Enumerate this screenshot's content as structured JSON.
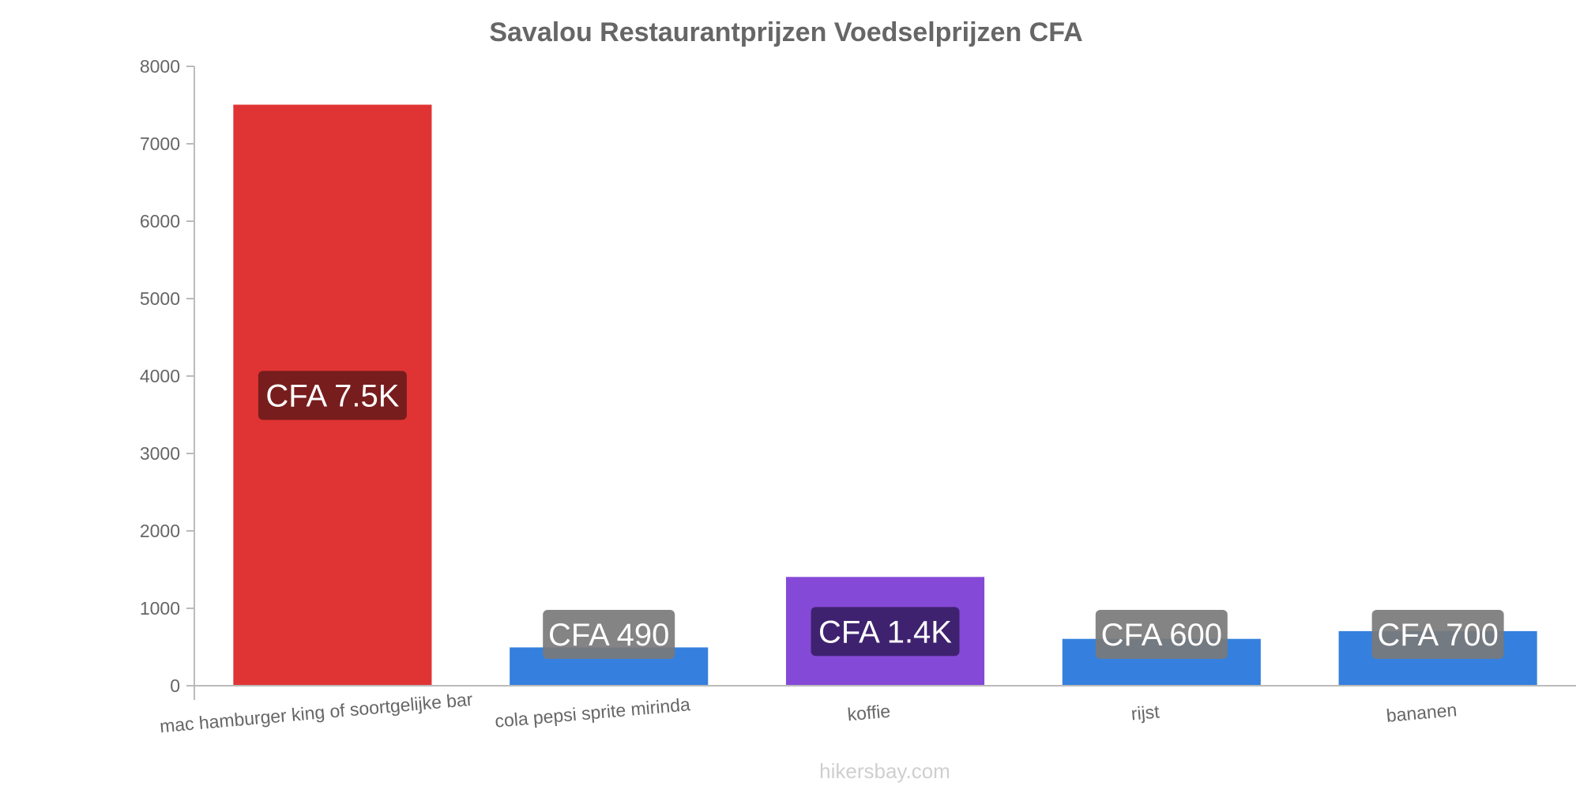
{
  "chart_data": {
    "type": "bar",
    "title": "Savalou Restaurantprijzen Voedselprijzen CFA",
    "xlabel": "",
    "ylabel": "",
    "ylim": [
      0,
      8000
    ],
    "yticks": [
      0,
      1000,
      2000,
      3000,
      4000,
      5000,
      6000,
      7000,
      8000
    ],
    "grid": false,
    "categories": [
      "mac hamburger king of soortgelijke bar",
      "cola pepsi sprite mirinda",
      "koffie",
      "rijst",
      "bananen"
    ],
    "values": [
      7500,
      490,
      1400,
      600,
      700
    ],
    "labels": [
      "CFA 7.5K",
      "CFA 490",
      "CFA 1.4K",
      "CFA 600",
      "CFA 700"
    ],
    "colors": [
      "#e03434",
      "#3580de",
      "#8549d8",
      "#3580de",
      "#3580de"
    ],
    "label_bg": [
      "#6e1b1b",
      "#7a7a7a",
      "#3a1f66",
      "#7a7a7a",
      "#7a7a7a"
    ]
  },
  "watermark": "hikersbay.com"
}
